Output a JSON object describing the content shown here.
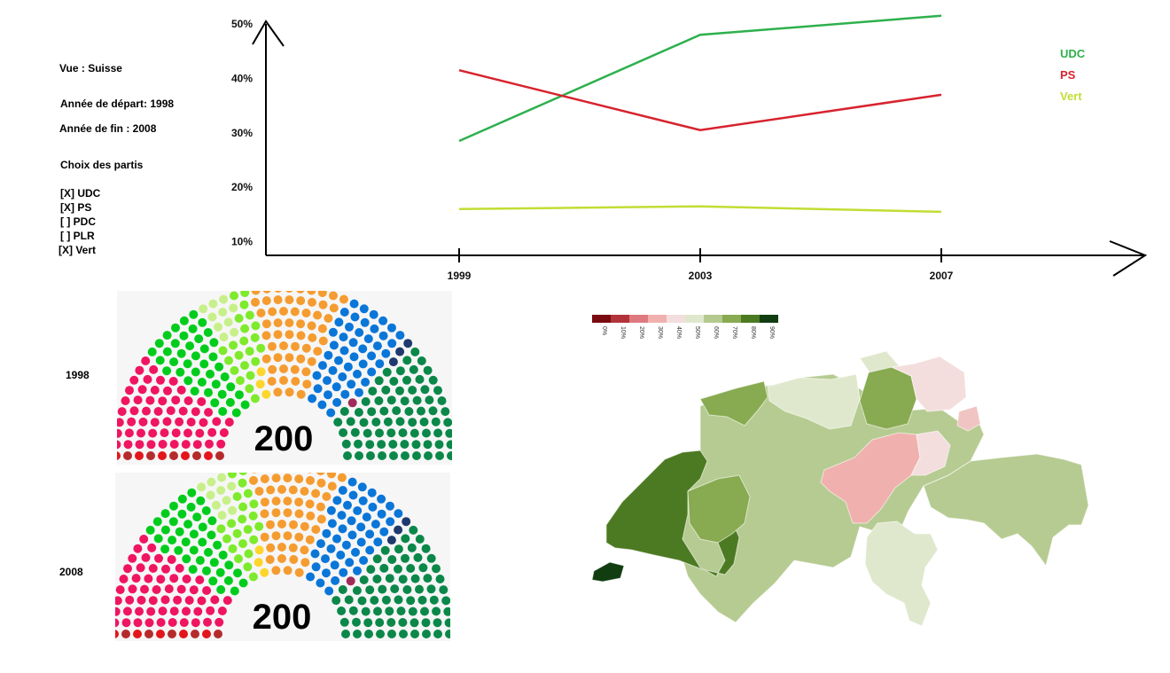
{
  "controls": {
    "view_label": "Vue : Suisse",
    "start_year_label": "Année de départ: 1998",
    "end_year_label": "Année de fin : 2008",
    "party_choice_title": "Choix des partis",
    "parties": [
      {
        "mark": "[X]",
        "name": "UDC"
      },
      {
        "mark": "[X]",
        "name": "PS"
      },
      {
        "mark": "[ ]",
        "name": "PDC"
      },
      {
        "mark": "[ ]",
        "name": "PLR"
      },
      {
        "mark": "[X]",
        "name": "Vert"
      }
    ]
  },
  "chart_data": {
    "type": "line",
    "x": [
      1999,
      2003,
      2007
    ],
    "x_tick_labels": [
      "1999",
      "2003",
      "2007"
    ],
    "y_tick_labels": [
      "10%",
      "20%",
      "30%",
      "40%",
      "50%"
    ],
    "y_ticks": [
      10,
      20,
      30,
      40,
      50
    ],
    "ylim": [
      7.5,
      50
    ],
    "series": [
      {
        "name": "UDC",
        "color": "#2eb04e",
        "values": [
          28.5,
          48,
          51.5
        ]
      },
      {
        "name": "PS",
        "color": "#d7232e",
        "values": [
          41.5,
          30.5,
          37
        ]
      },
      {
        "name": "Vert",
        "color": "#c2dd35",
        "values": [
          16,
          16.5,
          15.5
        ]
      }
    ],
    "legend_placement": "top-right",
    "grid": false
  },
  "parliament": {
    "seat_total_1998": "200",
    "seat_total_2008": "200",
    "year_1998": "1998",
    "year_2008": "2008",
    "colors": [
      "#b52b2b",
      "#e3161b",
      "#ef1561",
      "#00cc1c",
      "#7eea2c",
      "#c8f08a",
      "#fed52b",
      "#f59c31",
      "#0a76d8",
      "#1e3a6e",
      "#a12b58",
      "#0b8849"
    ]
  },
  "map": {
    "legend_labels": [
      "0%",
      "10%",
      "20%",
      "30%",
      "40%",
      "50%",
      "60%",
      "70%",
      "80%",
      "90%"
    ],
    "legend_colors": [
      "#7a0a10",
      "#b3333a",
      "#de7a7f",
      "#f0b0ae",
      "#f3dedd",
      "#dfe8cd",
      "#b4c98e",
      "#88aa51",
      "#4c7a22",
      "#113d11"
    ]
  }
}
